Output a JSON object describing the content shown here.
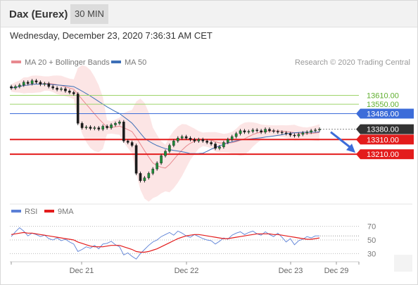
{
  "header": {
    "title": "Dax (Eurex)",
    "timeframe": "30 MIN"
  },
  "date_line": "Wednesday, December 23, 2020 7:36:31 AM CET",
  "copyright": "Research © 2020 Trading Central",
  "colors": {
    "ma20": "#e8898f",
    "bollinger": "#fbdede",
    "ma50": "#3d6fb7",
    "candle": "#1f8f3a",
    "resistance": "#9ed36a",
    "pivot": "#3c6cd9",
    "support": "#e31c1c",
    "price_label": "#333333",
    "rsi": "#5b80d6",
    "rsi_ma": "#e31c1c"
  },
  "chart_data": [
    {
      "type": "candlestick",
      "legend": [
        {
          "name": "MA 20 + Bollinger Bands",
          "color": "#e8898f"
        },
        {
          "name": "MA 50",
          "color": "#3d6fb7"
        }
      ],
      "x_ticks": [
        "Dec 21",
        "Dec 22",
        "Dec 23",
        "Dec 29"
      ],
      "ylim": [
        12900,
        13780
      ],
      "current_price": 13380.0,
      "levels": [
        {
          "value": 13610.0,
          "label": "13610.00",
          "kind": "resistance"
        },
        {
          "value": 13550.0,
          "label": "13550.00",
          "kind": "resistance"
        },
        {
          "value": 13486.0,
          "label": "13486.00",
          "kind": "pivot"
        },
        {
          "value": 13380.0,
          "label": "13380.00",
          "kind": "last"
        },
        {
          "value": 13310.0,
          "label": "13310.00",
          "kind": "support"
        },
        {
          "value": 13210.0,
          "label": "13210.00",
          "kind": "support"
        }
      ],
      "close": [
        13660,
        13670,
        13680,
        13700,
        13690,
        13710,
        13700,
        13685,
        13690,
        13670,
        13660,
        13650,
        13655,
        13640,
        13630,
        13620,
        13420,
        13390,
        13395,
        13385,
        13390,
        13380,
        13400,
        13390,
        13410,
        13420,
        13430,
        13300,
        13290,
        13270,
        13080,
        13030,
        13050,
        13080,
        13110,
        13150,
        13200,
        13230,
        13270,
        13300,
        13320,
        13330,
        13320,
        13310,
        13300,
        13310,
        13300,
        13290,
        13280,
        13250,
        13260,
        13290,
        13310,
        13330,
        13350,
        13370,
        13360,
        13365,
        13375,
        13370,
        13360,
        13380,
        13370,
        13365,
        13360,
        13355,
        13350,
        13340,
        13335,
        13345,
        13355,
        13360,
        13370,
        13375,
        13380
      ],
      "projection": {
        "from": 13380,
        "to": 13210
      }
    },
    {
      "type": "line",
      "legend": [
        {
          "name": "RSI",
          "color": "#5b80d6"
        },
        {
          "name": "9MA",
          "color": "#e31c1c"
        }
      ],
      "y_ticks": [
        "70",
        "50",
        "30"
      ],
      "ylim": [
        20,
        80
      ],
      "series": [
        {
          "name": "RSI",
          "values": [
            55,
            62,
            68,
            63,
            56,
            60,
            58,
            55,
            57,
            52,
            50,
            53,
            49,
            51,
            47,
            44,
            33,
            36,
            40,
            38,
            42,
            37,
            44,
            45,
            48,
            43,
            40,
            28,
            31,
            26,
            22,
            30,
            36,
            42,
            47,
            50,
            55,
            58,
            61,
            57,
            63,
            60,
            56,
            54,
            58,
            55,
            52,
            50,
            49,
            44,
            48,
            53,
            51,
            57,
            60,
            62,
            58,
            61,
            63,
            59,
            57,
            62,
            58,
            55,
            60,
            54,
            47,
            52,
            43,
            49,
            51,
            55,
            53,
            56,
            56
          ]
        },
        {
          "name": "9MA",
          "values": [
            58,
            59,
            60,
            61,
            60,
            60,
            59,
            58,
            57,
            56,
            55,
            54,
            53,
            52,
            51,
            50,
            47,
            45,
            43,
            41,
            40,
            40,
            40,
            41,
            42,
            42,
            42,
            40,
            38,
            36,
            33,
            32,
            32,
            33,
            35,
            37,
            40,
            43,
            46,
            49,
            52,
            54,
            56,
            57,
            58,
            58,
            57,
            56,
            55,
            54,
            53,
            52,
            52,
            53,
            54,
            55,
            56,
            57,
            58,
            59,
            59,
            59,
            59,
            58,
            58,
            57,
            56,
            55,
            54,
            53,
            52,
            51,
            51,
            52,
            53
          ]
        }
      ]
    }
  ]
}
